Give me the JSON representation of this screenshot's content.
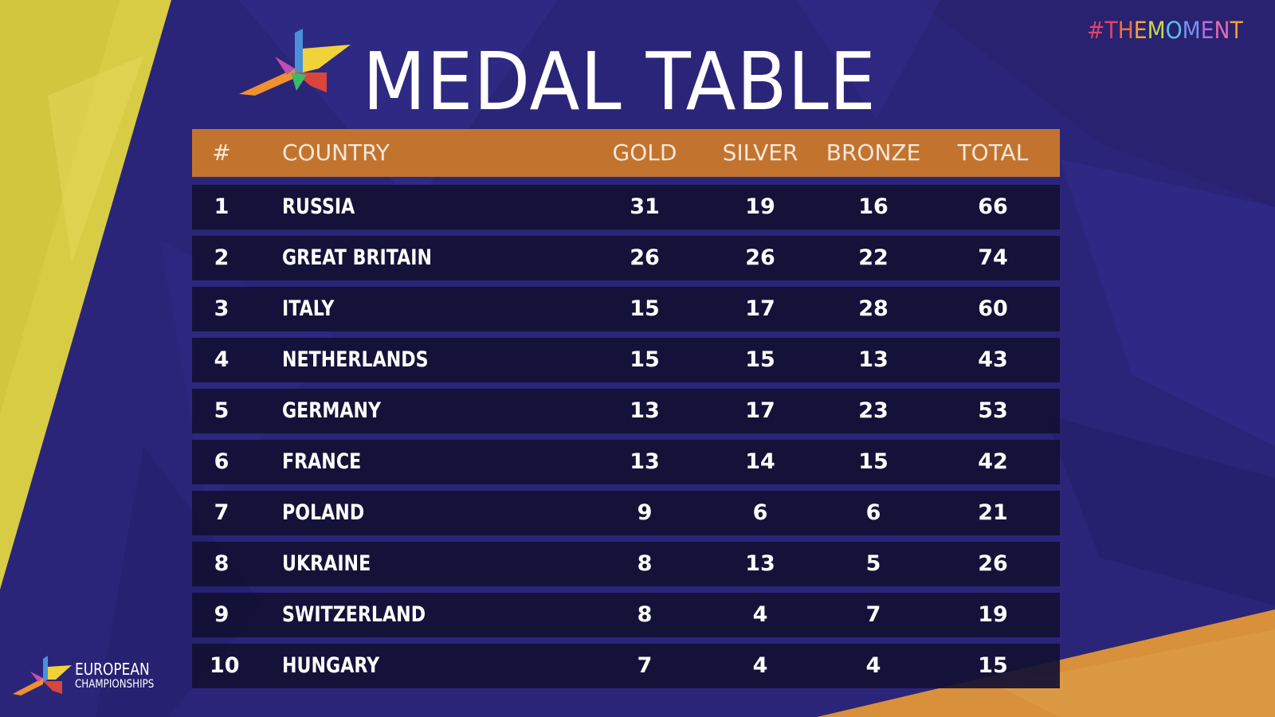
{
  "title": "MEDAL TABLE",
  "hashtag": {
    "letters": [
      "#",
      "T",
      "H",
      "E",
      "M",
      "O",
      "M",
      "E",
      "N",
      "T"
    ],
    "colors": [
      "#e0436b",
      "#e0436b",
      "#f0703a",
      "#f3a23a",
      "#c8d84a",
      "#59c1e8",
      "#7b8ff0",
      "#b06de0",
      "#e36bb0",
      "#f0a030"
    ]
  },
  "table": {
    "headers": {
      "rank": "#",
      "country": "COUNTRY",
      "gold": "GOLD",
      "silver": "SILVER",
      "bronze": "BRONZE",
      "total": "TOTAL"
    },
    "rows": [
      {
        "rank": "1",
        "country": "RUSSIA",
        "gold": "31",
        "silver": "19",
        "bronze": "16",
        "total": "66"
      },
      {
        "rank": "2",
        "country": "GREAT BRITAIN",
        "gold": "26",
        "silver": "26",
        "bronze": "22",
        "total": "74"
      },
      {
        "rank": "3",
        "country": "ITALY",
        "gold": "15",
        "silver": "17",
        "bronze": "28",
        "total": "60"
      },
      {
        "rank": "4",
        "country": "NETHERLANDS",
        "gold": "15",
        "silver": "15",
        "bronze": "13",
        "total": "43"
      },
      {
        "rank": "5",
        "country": "GERMANY",
        "gold": "13",
        "silver": "17",
        "bronze": "23",
        "total": "53"
      },
      {
        "rank": "6",
        "country": "FRANCE",
        "gold": "13",
        "silver": "14",
        "bronze": "15",
        "total": "42"
      },
      {
        "rank": "7",
        "country": "POLAND",
        "gold": "9",
        "silver": "6",
        "bronze": "6",
        "total": "21"
      },
      {
        "rank": "8",
        "country": "UKRAINE",
        "gold": "8",
        "silver": "13",
        "bronze": "5",
        "total": "26"
      },
      {
        "rank": "9",
        "country": "SWITZERLAND",
        "gold": "8",
        "silver": "4",
        "bronze": "7",
        "total": "19"
      },
      {
        "rank": "10",
        "country": "HUNGARY",
        "gold": "7",
        "silver": "4",
        "bronze": "4",
        "total": "15"
      }
    ]
  },
  "brand": {
    "line1": "EUROPEAN",
    "line2": "CHAMPIONSHIPS"
  },
  "colors": {
    "background": "#2a2478",
    "header_bar": "#c2742f",
    "row_bg": "#121034",
    "yellow_band": "#d9cc45",
    "orange_corner": "#d8903a"
  }
}
